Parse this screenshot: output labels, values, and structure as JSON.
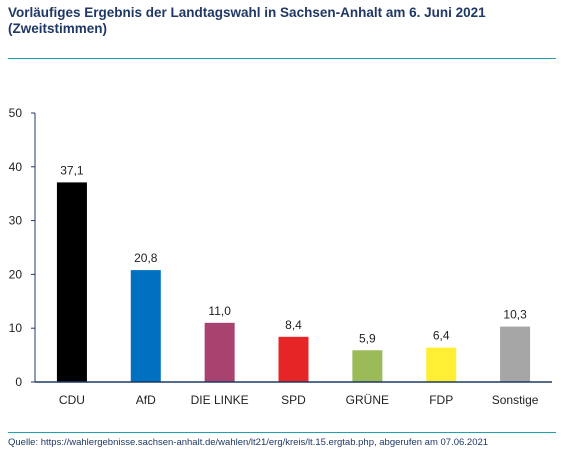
{
  "header": {
    "title_line1": "Vorläufiges Ergebnis der Landtagswahl in Sachsen-Anhalt am 6. Juni 2021",
    "title_line2": "(Zweitstimmen)"
  },
  "footer": {
    "source": "Quelle:  https://wahlergebnisse.sachsen-anhalt.de/wahlen/lt21/erg/kreis/lt.15.ergtab.php, abgerufen am 07.06.2021"
  },
  "chart_data": {
    "type": "bar",
    "title": "Vorläufiges Ergebnis der Landtagswahl in Sachsen-Anhalt am 6. Juni 2021 (Zweitstimmen)",
    "xlabel": "",
    "ylabel": "",
    "categories": [
      "CDU",
      "AfD",
      "DIE LINKE",
      "SPD",
      "GRÜNE",
      "FDP",
      "Sonstige"
    ],
    "values": [
      37.1,
      20.8,
      11.0,
      8.4,
      5.9,
      6.4,
      10.3
    ],
    "value_labels": [
      "37,1",
      "20,8",
      "11,0",
      "8,4",
      "5,9",
      "6,4",
      "10,3"
    ],
    "colors": [
      "#000000",
      "#0070c0",
      "#a8426e",
      "#e52526",
      "#9bbb59",
      "#ffee33",
      "#a6a6a6"
    ],
    "ylim": [
      0,
      50
    ],
    "yticks": [
      0,
      10,
      20,
      30,
      40,
      50
    ],
    "grid": false,
    "legend": "none",
    "axis_color": "#1f3864"
  }
}
